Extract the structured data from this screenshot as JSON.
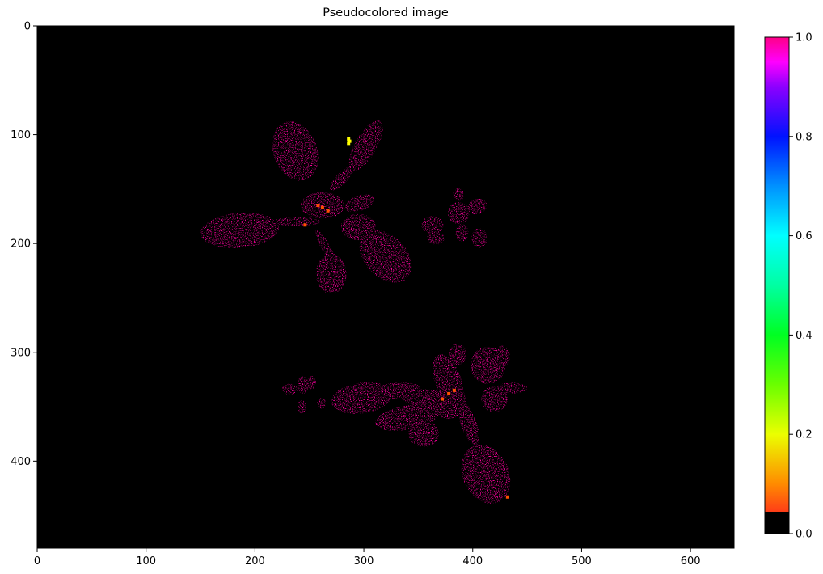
{
  "chart_data": {
    "type": "heatmap",
    "title": "Pseudocolored image",
    "xlabel": "",
    "ylabel": "",
    "image_size": [
      640,
      480
    ],
    "xlim": [
      0,
      640
    ],
    "ylim": [
      480,
      0
    ],
    "x_ticks": [
      0,
      100,
      200,
      300,
      400,
      500,
      600
    ],
    "y_ticks": [
      0,
      100,
      200,
      300,
      400
    ],
    "background_color": "#000000",
    "grid": false,
    "colormap": "gist_rainbow",
    "colorbar": {
      "range": [
        0,
        1
      ],
      "ticks": [
        "0.0",
        "0.2",
        "0.4",
        "0.6",
        "0.8",
        "1.0"
      ],
      "masked_color": "#000000",
      "stops": [
        {
          "value": 0.0,
          "color": "#ff0029"
        },
        {
          "value": 0.1,
          "color": "#ff8b00"
        },
        {
          "value": 0.2,
          "color": "#ebff00"
        },
        {
          "value": 0.3,
          "color": "#6aff00"
        },
        {
          "value": 0.4,
          "color": "#00ff22"
        },
        {
          "value": 0.5,
          "color": "#00ffa2"
        },
        {
          "value": 0.6,
          "color": "#00ffff"
        },
        {
          "value": 0.7,
          "color": "#0091ff"
        },
        {
          "value": 0.8,
          "color": "#0012ff"
        },
        {
          "value": 0.9,
          "color": "#8c00ff"
        },
        {
          "value": 0.95,
          "color": "#ff00ff"
        },
        {
          "value": 1.0,
          "color": "#ff0087"
        }
      ]
    },
    "regions": [
      {
        "name": "plant-upper-left",
        "dominant_value": 0.98,
        "color": "#ff00a0",
        "leaves": [
          {
            "cx": 237,
            "cy": 115,
            "rx": 20,
            "ry": 28,
            "angle": -20
          },
          {
            "cx": 302,
            "cy": 110,
            "rx": 10,
            "ry": 26,
            "angle": 30
          },
          {
            "cx": 280,
            "cy": 140,
            "rx": 5,
            "ry": 15,
            "angle": 45
          },
          {
            "cx": 186,
            "cy": 188,
            "rx": 36,
            "ry": 16,
            "angle": -5
          },
          {
            "cx": 238,
            "cy": 180,
            "rx": 22,
            "ry": 4,
            "angle": 0
          },
          {
            "cx": 262,
            "cy": 165,
            "rx": 20,
            "ry": 12,
            "angle": 0
          },
          {
            "cx": 296,
            "cy": 163,
            "rx": 14,
            "ry": 7,
            "angle": -20
          },
          {
            "cx": 266,
            "cy": 205,
            "rx": 4,
            "ry": 20,
            "angle": -30
          },
          {
            "cx": 270,
            "cy": 228,
            "rx": 14,
            "ry": 18,
            "angle": 0
          },
          {
            "cx": 320,
            "cy": 212,
            "rx": 28,
            "ry": 19,
            "angle": 45
          },
          {
            "cx": 295,
            "cy": 185,
            "rx": 16,
            "ry": 12,
            "angle": 0
          }
        ]
      },
      {
        "name": "plant-upper-right",
        "dominant_value": 0.98,
        "color": "#ff00a0",
        "leaves": [
          {
            "cx": 363,
            "cy": 183,
            "rx": 10,
            "ry": 8,
            "angle": 0
          },
          {
            "cx": 366,
            "cy": 195,
            "rx": 8,
            "ry": 6,
            "angle": 0
          },
          {
            "cx": 387,
            "cy": 172,
            "rx": 10,
            "ry": 10,
            "angle": 0
          },
          {
            "cx": 387,
            "cy": 155,
            "rx": 5,
            "ry": 6,
            "angle": 0
          },
          {
            "cx": 404,
            "cy": 166,
            "rx": 9,
            "ry": 7,
            "angle": -20
          },
          {
            "cx": 406,
            "cy": 195,
            "rx": 7,
            "ry": 9,
            "angle": 0
          },
          {
            "cx": 390,
            "cy": 190,
            "rx": 6,
            "ry": 8,
            "angle": 0
          }
        ]
      },
      {
        "name": "plant-lower-small",
        "dominant_value": 0.98,
        "color": "#ff00a0",
        "leaves": [
          {
            "cx": 232,
            "cy": 334,
            "rx": 7,
            "ry": 5,
            "angle": 0
          },
          {
            "cx": 244,
            "cy": 330,
            "rx": 5,
            "ry": 8,
            "angle": 0
          },
          {
            "cx": 252,
            "cy": 328,
            "rx": 4,
            "ry": 6,
            "angle": 0
          },
          {
            "cx": 243,
            "cy": 350,
            "rx": 4,
            "ry": 6,
            "angle": 0
          },
          {
            "cx": 261,
            "cy": 347,
            "rx": 4,
            "ry": 5,
            "angle": 0
          }
        ]
      },
      {
        "name": "plant-lower-large",
        "dominant_value": 0.98,
        "color": "#ff00a0",
        "leaves": [
          {
            "cx": 298,
            "cy": 342,
            "rx": 28,
            "ry": 14,
            "angle": -8
          },
          {
            "cx": 330,
            "cy": 335,
            "rx": 22,
            "ry": 7,
            "angle": -5
          },
          {
            "cx": 340,
            "cy": 360,
            "rx": 30,
            "ry": 11,
            "angle": -10
          },
          {
            "cx": 355,
            "cy": 375,
            "rx": 14,
            "ry": 12,
            "angle": 0
          },
          {
            "cx": 357,
            "cy": 342,
            "rx": 24,
            "ry": 8,
            "angle": 5
          },
          {
            "cx": 377,
            "cy": 325,
            "rx": 12,
            "ry": 24,
            "angle": -20
          },
          {
            "cx": 378,
            "cy": 345,
            "rx": 16,
            "ry": 16,
            "angle": 0
          },
          {
            "cx": 386,
            "cy": 302,
            "rx": 8,
            "ry": 10,
            "angle": 0
          },
          {
            "cx": 414,
            "cy": 312,
            "rx": 16,
            "ry": 17,
            "angle": 0
          },
          {
            "cx": 427,
            "cy": 304,
            "rx": 7,
            "ry": 10,
            "angle": 0
          },
          {
            "cx": 420,
            "cy": 343,
            "rx": 12,
            "ry": 12,
            "angle": 0
          },
          {
            "cx": 436,
            "cy": 333,
            "rx": 14,
            "ry": 5,
            "angle": 0
          },
          {
            "cx": 396,
            "cy": 365,
            "rx": 7,
            "ry": 22,
            "angle": -20
          },
          {
            "cx": 412,
            "cy": 412,
            "rx": 21,
            "ry": 28,
            "angle": -25
          }
        ]
      }
    ],
    "highlights": [
      {
        "value": 0.2,
        "color": "#ffff00",
        "points": [
          [
            286,
            104
          ],
          [
            286,
            108
          ],
          [
            287,
            106
          ]
        ]
      },
      {
        "value": 0.08,
        "color": "#ff5000",
        "points": [
          [
            262,
            167
          ],
          [
            258,
            165
          ],
          [
            267,
            170
          ],
          [
            378,
            338
          ],
          [
            383,
            335
          ],
          [
            372,
            343
          ],
          [
            246,
            183
          ],
          [
            432,
            433
          ]
        ]
      }
    ]
  }
}
